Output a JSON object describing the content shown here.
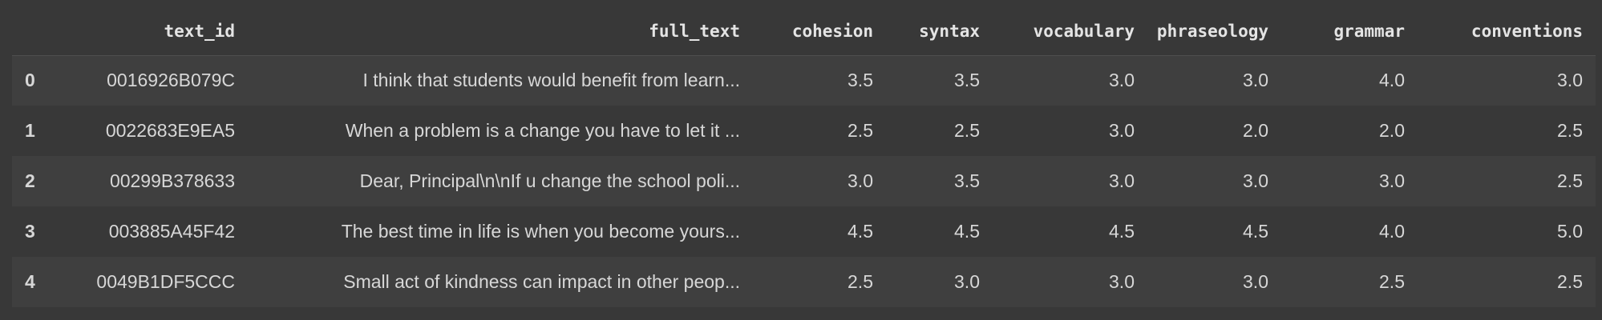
{
  "table": {
    "columns": [
      "text_id",
      "full_text",
      "cohesion",
      "syntax",
      "vocabulary",
      "phraseology",
      "grammar",
      "conventions"
    ],
    "rows": [
      {
        "index": "0",
        "text_id": "0016926B079C",
        "full_text": "I think that students would benefit from learn...",
        "cohesion": "3.5",
        "syntax": "3.5",
        "vocabulary": "3.0",
        "phraseology": "3.0",
        "grammar": "4.0",
        "conventions": "3.0"
      },
      {
        "index": "1",
        "text_id": "0022683E9EA5",
        "full_text": "When a problem is a change you have to let it ...",
        "cohesion": "2.5",
        "syntax": "2.5",
        "vocabulary": "3.0",
        "phraseology": "2.0",
        "grammar": "2.0",
        "conventions": "2.5"
      },
      {
        "index": "2",
        "text_id": "00299B378633",
        "full_text": "Dear, Principal\\n\\nIf u change the school poli...",
        "cohesion": "3.0",
        "syntax": "3.5",
        "vocabulary": "3.0",
        "phraseology": "3.0",
        "grammar": "3.0",
        "conventions": "2.5"
      },
      {
        "index": "3",
        "text_id": "003885A45F42",
        "full_text": "The best time in life is when you become yours...",
        "cohesion": "4.5",
        "syntax": "4.5",
        "vocabulary": "4.5",
        "phraseology": "4.5",
        "grammar": "4.0",
        "conventions": "5.0"
      },
      {
        "index": "4",
        "text_id": "0049B1DF5CCC",
        "full_text": "Small act of kindness can impact in other peop...",
        "cohesion": "2.5",
        "syntax": "3.0",
        "vocabulary": "3.0",
        "phraseology": "3.0",
        "grammar": "2.5",
        "conventions": "2.5"
      }
    ]
  }
}
